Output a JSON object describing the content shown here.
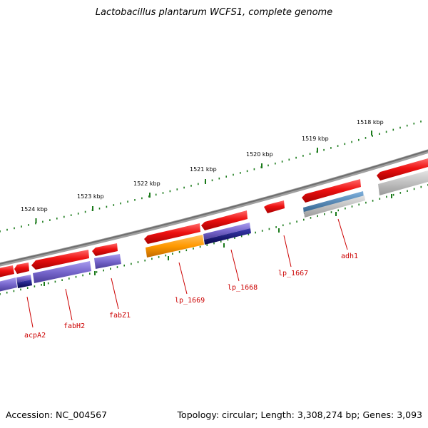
{
  "title": "Lactobacillus plantarum WCFS1, complete genome",
  "footer": {
    "accession_label": "Accession:",
    "accession": "NC_004567",
    "topology_label": "Topology:",
    "topology": "circular",
    "length_label": "Length:",
    "length": "3,308,274 bp",
    "genes_label": "Genes:",
    "genes": "3,093"
  },
  "kbp_unit": "kbp",
  "ruler": [
    {
      "kbp": 1524,
      "label": "1524 kbp"
    },
    {
      "kbp": 1523,
      "label": "1523 kbp"
    },
    {
      "kbp": 1522,
      "label": "1522 kbp"
    },
    {
      "kbp": 1521,
      "label": "1521 kbp"
    },
    {
      "kbp": 1520,
      "label": "1520 kbp"
    },
    {
      "kbp": 1519,
      "label": "1519 kbp"
    },
    {
      "kbp": 1518,
      "label": "1518 kbp"
    }
  ],
  "colors": {
    "backbone": "#808080",
    "ruler": "#1a7a1a",
    "cds": "#ee1111",
    "cds_dark": "#bb0000",
    "feature_purple": "#7766cc",
    "feature_navy": "#10107a",
    "feature_orange": "#ff9900",
    "feature_steel": "#4682b4",
    "feature_gray": "#b8b8b8",
    "gene_label": "#cc0000"
  },
  "genes": [
    {
      "name": "acpA2"
    },
    {
      "name": "fabH2"
    },
    {
      "name": "fabZ1"
    },
    {
      "name": "lp_1669"
    },
    {
      "name": "lp_1668"
    },
    {
      "name": "lp_1667"
    },
    {
      "name": "adh1"
    }
  ]
}
